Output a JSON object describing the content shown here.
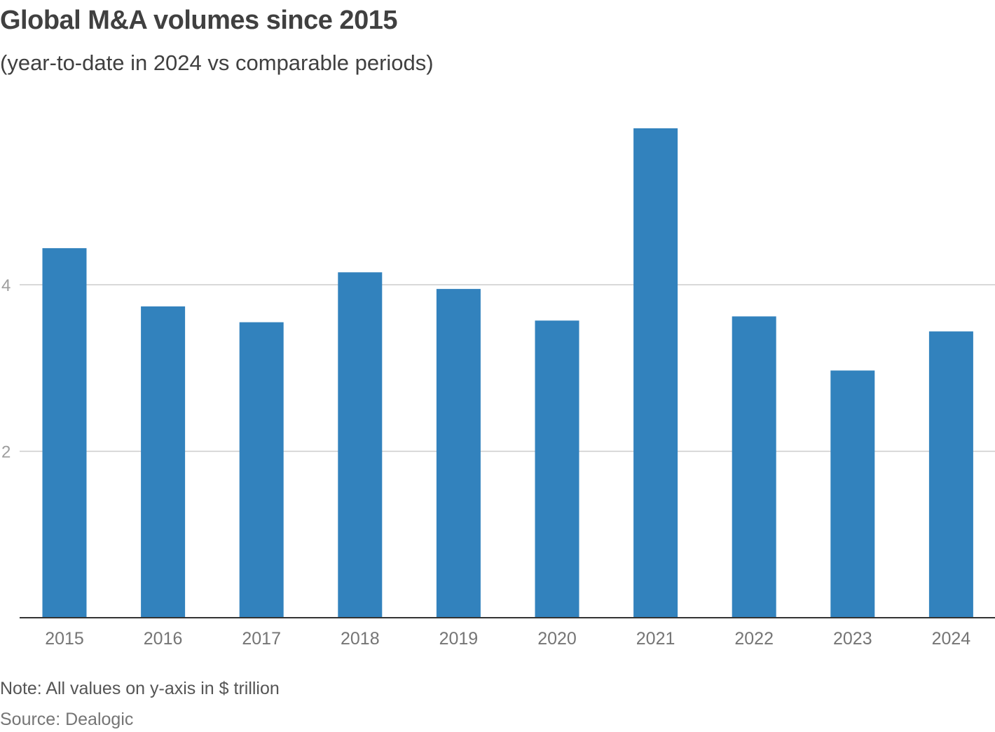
{
  "chart_data": {
    "type": "bar",
    "title": "Global M&A volumes since 2015",
    "subtitle": "(year-to-date in 2024 vs comparable periods)",
    "categories": [
      "2015",
      "2016",
      "2017",
      "2018",
      "2019",
      "2020",
      "2021",
      "2022",
      "2023",
      "2024"
    ],
    "series": [
      {
        "name": "Global M&A volume",
        "values": [
          4.44,
          3.74,
          3.55,
          4.15,
          3.95,
          3.57,
          5.88,
          3.62,
          2.97,
          3.44
        ]
      }
    ],
    "xlabel": "",
    "ylabel": "",
    "ylim": [
      0,
      6.2
    ],
    "yticks": [
      {
        "value": 2,
        "label": "2"
      },
      {
        "value": 4,
        "label": "4"
      }
    ],
    "grid": true,
    "legend": "none",
    "colors": {
      "bar": "#3282bd",
      "grid": "#cccccc",
      "axis": "#333333"
    }
  },
  "footer": {
    "note": "Note: All values on y-axis in $ trillion",
    "source": "Source: Dealogic"
  }
}
